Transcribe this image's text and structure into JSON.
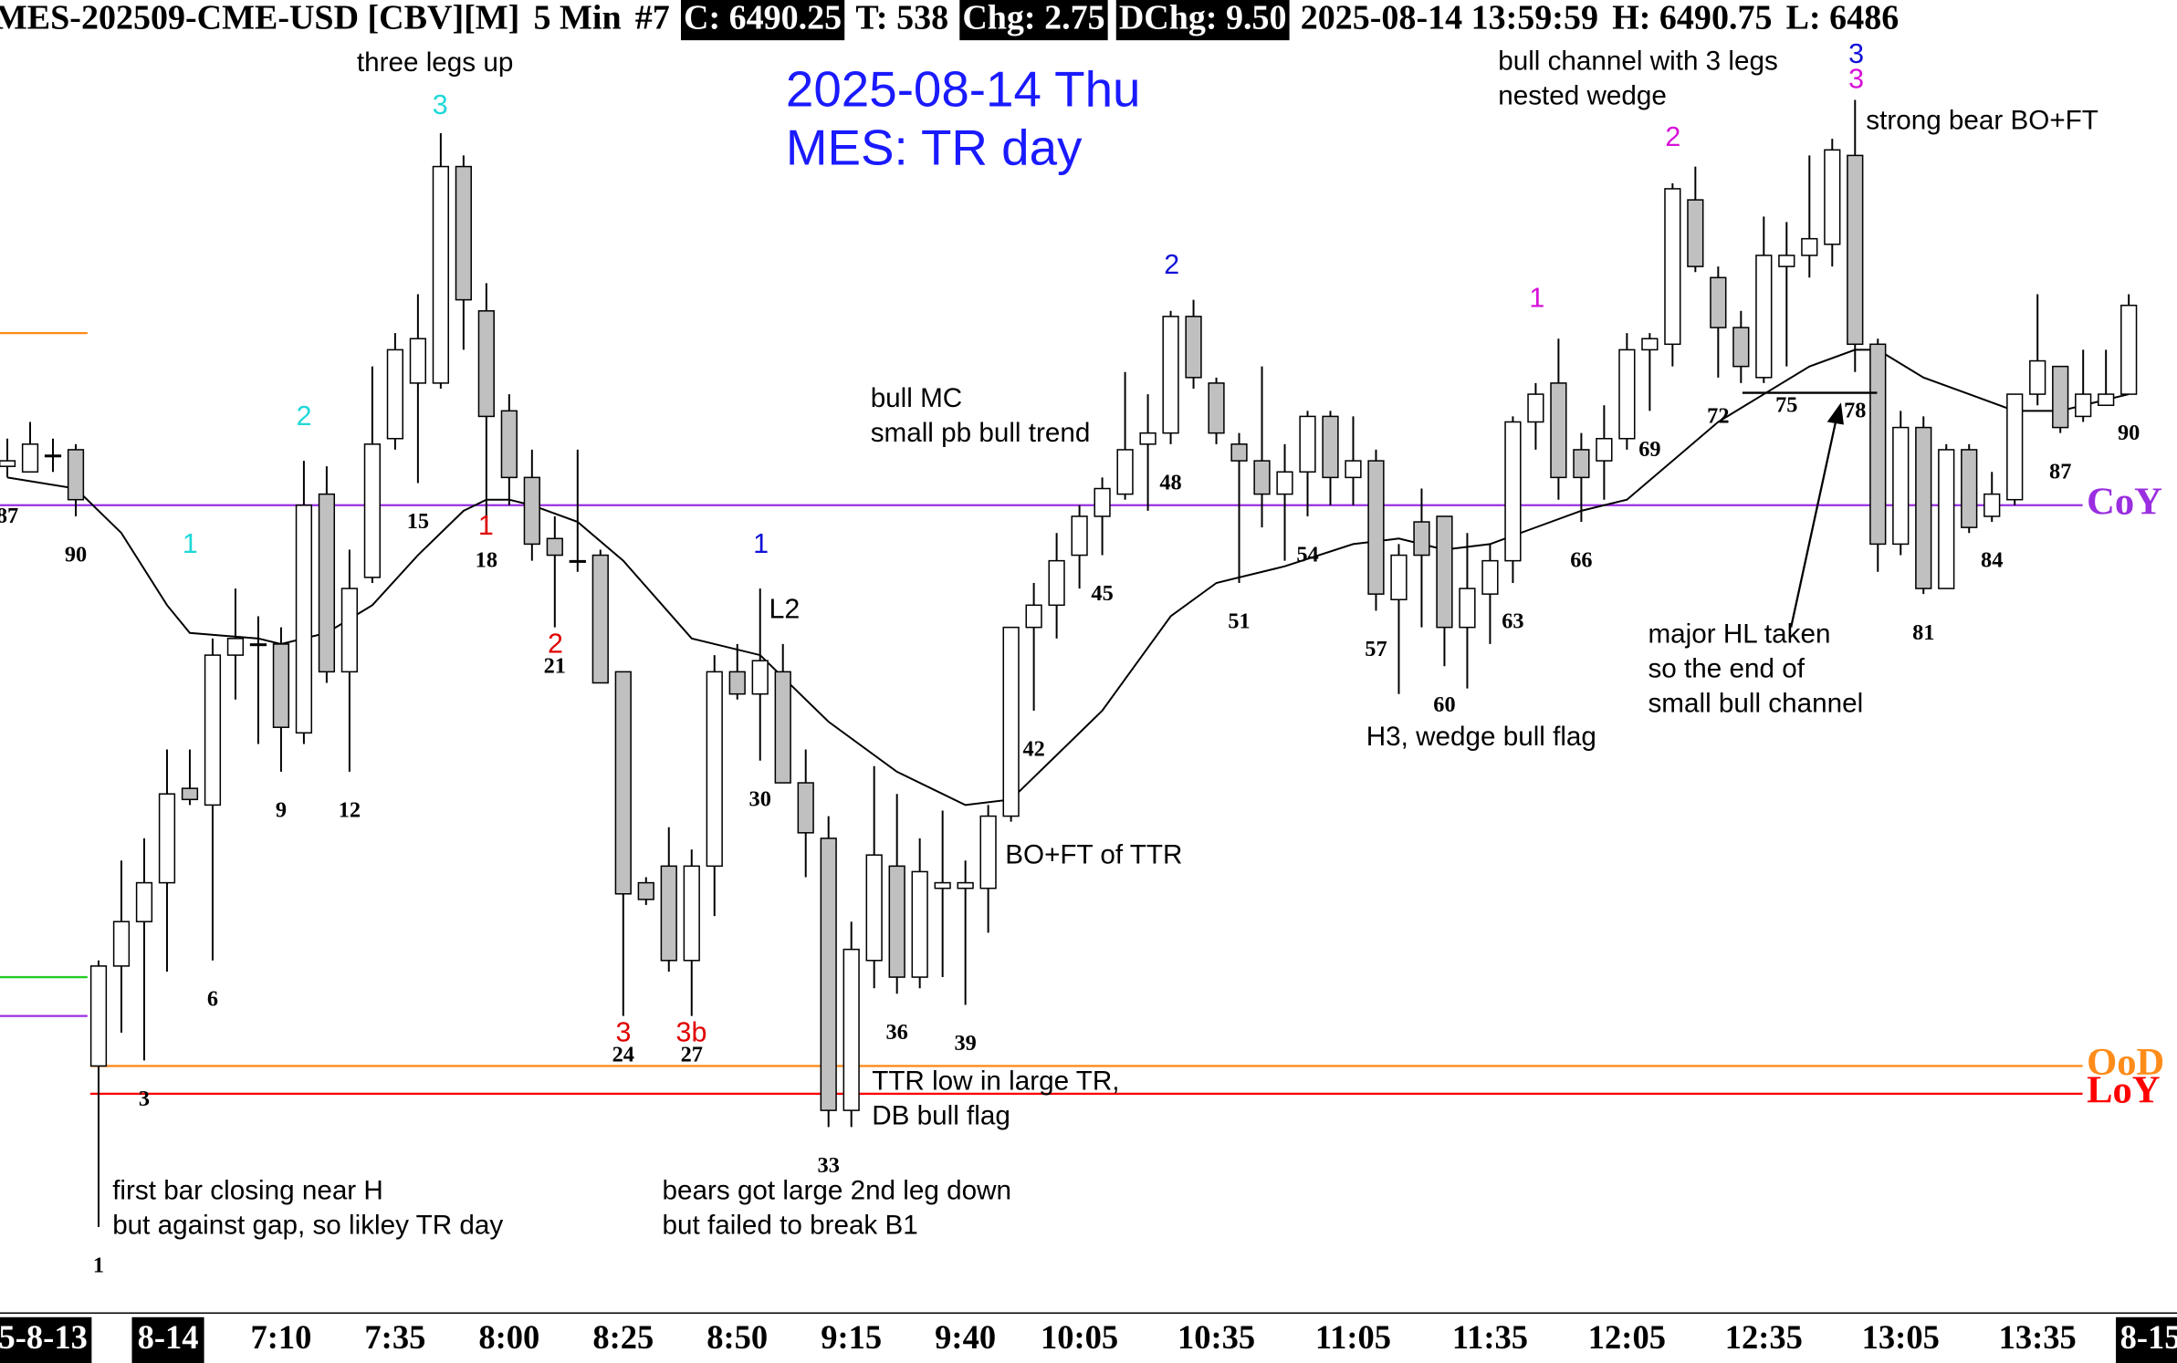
{
  "header": [
    {
      "text": "MES-202509-CME-USD [CBV][M]",
      "inverted": false
    },
    {
      "text": "5 Min",
      "inverted": false
    },
    {
      "text": "#7",
      "inverted": false
    },
    {
      "text": "C: 6490.25",
      "inverted": true
    },
    {
      "text": "T: 538",
      "inverted": false
    },
    {
      "text": "Chg: 2.75",
      "inverted": true
    },
    {
      "text": "DChg: 9.50",
      "inverted": true
    },
    {
      "text": "2025-08-14 13:59:59",
      "inverted": false
    },
    {
      "text": "H: 6490.75",
      "inverted": false
    },
    {
      "text": "L: 6486",
      "inverted": false
    }
  ],
  "chart_data": {
    "type": "candlestick",
    "title": "2025-08-14 Thu",
    "subtitle": "MES: TR day",
    "up_color": "#ffffff",
    "down_color": "#c0c0c0",
    "ylim": [
      6445,
      6504
    ],
    "categories": [
      "87",
      null,
      null,
      "90",
      "1",
      null,
      "3",
      null,
      null,
      "6",
      null,
      null,
      "9",
      null,
      null,
      "12",
      null,
      null,
      "15",
      null,
      null,
      "18",
      null,
      null,
      "21",
      null,
      null,
      "24",
      null,
      null,
      "27",
      null,
      null,
      "30",
      null,
      null,
      "33",
      null,
      null,
      "36",
      null,
      null,
      "39",
      null,
      null,
      "42",
      null,
      null,
      "45",
      null,
      null,
      "48",
      null,
      null,
      "51",
      null,
      null,
      "54",
      null,
      null,
      "57",
      null,
      null,
      "60",
      null,
      null,
      "63",
      null,
      null,
      "66",
      null,
      null,
      "69",
      null,
      null,
      "72",
      null,
      null,
      "75",
      null,
      null,
      "78",
      null,
      null,
      "81",
      null,
      null,
      "84",
      null,
      null,
      "87",
      null,
      null,
      "90"
    ],
    "times": [
      null,
      null,
      null,
      null,
      null,
      null,
      null,
      null,
      null,
      null,
      null,
      null,
      "7:10",
      null,
      null,
      null,
      null,
      "7:35",
      null,
      null,
      null,
      null,
      "8:00",
      null,
      null,
      null,
      null,
      "8:25",
      null,
      null,
      null,
      null,
      "8:50",
      null,
      null,
      null,
      null,
      "9:15",
      null,
      null,
      null,
      null,
      "9:40",
      null,
      null,
      null,
      null,
      "10:05",
      null,
      null,
      null,
      null,
      null,
      "10:35",
      null,
      null,
      null,
      null,
      null,
      "11:05",
      null,
      null,
      null,
      null,
      null,
      "11:35",
      null,
      null,
      null,
      null,
      null,
      "12:05",
      null,
      null,
      null,
      null,
      null,
      "12:35",
      null,
      null,
      null,
      null,
      null,
      "13:05",
      null,
      null,
      null,
      null,
      null,
      "13:35",
      null,
      null,
      null,
      null
    ],
    "open": [
      6483,
      6482.75,
      6483.5,
      6483.75,
      6456,
      6460.5,
      6462.5,
      6464.25,
      6468.5,
      6467.75,
      6474.5,
      6475,
      6475,
      6471,
      6481.75,
      6473.75,
      6478,
      6484.25,
      6486.75,
      6486.75,
      6496.5,
      6490,
      6485.5,
      6482.5,
      6479.75,
      6478.75,
      6479,
      6473.75,
      6464.25,
      6465,
      6460.75,
      6465,
      6473.75,
      6472.75,
      6473.75,
      6468.75,
      6466.25,
      6454,
      6460.75,
      6465,
      6460,
      6464,
      6464,
      6464,
      6467.25,
      6475.75,
      6476.75,
      6479,
      6480.75,
      6481.75,
      6484,
      6484.5,
      6489.75,
      6486.75,
      6484,
      6483.25,
      6481.75,
      6482.75,
      6485.25,
      6482.5,
      6483.25,
      6477,
      6480.5,
      6480.75,
      6475.75,
      6477.25,
      6478.75,
      6485,
      6486.75,
      6483.75,
      6483.25,
      6484.25,
      6488.25,
      6488.5,
      6495,
      6491.5,
      6489.25,
      6487,
      6492,
      6492.5,
      6493,
      6497,
      6488.5,
      6479.5,
      6484.75,
      6477.5,
      6483.75,
      6480.75,
      6481.5,
      6486.25,
      6487.5,
      6485.25,
      6485.75,
      6486.25
    ],
    "high": [
      6484.25,
      6485,
      6484.25,
      6484,
      6460.75,
      6465.25,
      6466.25,
      6470.25,
      6470.25,
      6475.25,
      6477.5,
      6476.25,
      6475.75,
      6483.25,
      6483,
      6479.25,
      6487.5,
      6489,
      6490.75,
      6498,
      6497,
      6491.25,
      6486.25,
      6483.75,
      6480.75,
      6483.75,
      6479.25,
      6473.75,
      6464.5,
      6466.75,
      6465.75,
      6474.5,
      6475,
      6477.5,
      6475,
      6470.25,
      6467.25,
      6462.5,
      6469.5,
      6468.25,
      6466.25,
      6467.5,
      6465.25,
      6467.75,
      6475.75,
      6477.75,
      6480,
      6481.25,
      6482.5,
      6487.25,
      6486.25,
      6490,
      6490.5,
      6487,
      6484.5,
      6487.5,
      6484,
      6485.5,
      6485.5,
      6485.25,
      6483.75,
      6479.5,
      6482,
      6480.75,
      6480,
      6479.5,
      6485.25,
      6486.75,
      6488.75,
      6484.5,
      6485.75,
      6489,
      6489,
      6495.75,
      6496.5,
      6492,
      6490,
      6494.25,
      6494,
      6497,
      6497.75,
      6499.5,
      6488.75,
      6485.5,
      6485.25,
      6484,
      6484,
      6482.75,
      6486.25,
      6490.75,
      6487.5,
      6488.25,
      6488.25,
      6490.75
    ],
    "low": [
      6482.5,
      6482.75,
      6482.75,
      6480.75,
      6448.75,
      6457.5,
      6456.25,
      6460.25,
      6467.75,
      6460.75,
      6472.5,
      6470.5,
      6469.25,
      6470.5,
      6473.25,
      6469.25,
      6477.75,
      6483.75,
      6482.25,
      6486.5,
      6488.25,
      6480.5,
      6481.25,
      6478.75,
      6475.75,
      6478.25,
      6473.25,
      6458.25,
      6463.25,
      6460.25,
      6458.25,
      6462.75,
      6472.5,
      6469.75,
      6468.75,
      6464.5,
      6453.25,
      6453.25,
      6459.5,
      6459.25,
      6459.5,
      6460,
      6458.75,
      6462,
      6467,
      6472,
      6475.25,
      6477.5,
      6479,
      6481.5,
      6481,
      6484,
      6486.5,
      6484,
      6477.75,
      6480.25,
      6478.75,
      6480.75,
      6481.25,
      6481.25,
      6476.5,
      6472.75,
      6475.75,
      6474,
      6473,
      6475,
      6477.75,
      6483.75,
      6481.5,
      6480.5,
      6481.5,
      6483.75,
      6485.5,
      6487.5,
      6491.75,
      6487,
      6486.75,
      6486.75,
      6487.5,
      6491.5,
      6492,
      6487.25,
      6478.25,
      6479,
      6477.25,
      6477.5,
      6480,
      6480.5,
      6481.25,
      6485.75,
      6484.5,
      6485,
      6485.75,
      6486.25
    ],
    "close": [
      6483.25,
      6484,
      6483.5,
      6481.5,
      6460.5,
      6462.5,
      6464.25,
      6468.25,
      6468,
      6474.5,
      6475.25,
      6475,
      6471.25,
      6481.25,
      6473.75,
      6477.5,
      6484,
      6488.25,
      6488.75,
      6496.5,
      6490.5,
      6485.25,
      6482.5,
      6479.5,
      6479,
      6478.75,
      6473.25,
      6463.75,
      6463.5,
      6460.75,
      6465,
      6473.75,
      6472.75,
      6474.25,
      6468.75,
      6466.5,
      6454,
      6461.25,
      6465.5,
      6460,
      6464.75,
      6464.25,
      6464.25,
      6467.25,
      6475.75,
      6476.75,
      6478.75,
      6480.75,
      6482,
      6483.75,
      6484.5,
      6489.75,
      6487,
      6484.5,
      6483.25,
      6481.75,
      6482.75,
      6485.25,
      6482.5,
      6483.25,
      6477.25,
      6479,
      6479,
      6475.75,
      6477.5,
      6478.75,
      6485,
      6486.25,
      6482.5,
      6482.5,
      6484.25,
      6488.25,
      6488.75,
      6495.5,
      6492,
      6489.25,
      6487.5,
      6492.5,
      6492.5,
      6493.25,
      6497.25,
      6488.5,
      6479.5,
      6484.75,
      6477.5,
      6483.75,
      6480.25,
      6481.75,
      6486.25,
      6487.75,
      6484.75,
      6486.25,
      6486.25,
      6490.25
    ],
    "ema": {
      "color": "#000000",
      "x": [
        0,
        3,
        5,
        7,
        8,
        11,
        12,
        14,
        16,
        18,
        20,
        21,
        22,
        23,
        25,
        27,
        30,
        33,
        36,
        39,
        42,
        44,
        46,
        48,
        51,
        53,
        56,
        59,
        61,
        63,
        65,
        67,
        69,
        71,
        73,
        75,
        77,
        79,
        81,
        82,
        84,
        86,
        88,
        90,
        93
      ],
      "values": [
        6482.5,
        6482,
        6480,
        6476.75,
        6475.5,
        6475.25,
        6475,
        6475.5,
        6476.75,
        6479,
        6481,
        6481.5,
        6481.5,
        6481.25,
        6480.5,
        6478.75,
        6475.25,
        6474.5,
        6471.5,
        6469.25,
        6467.75,
        6468,
        6470,
        6472,
        6476.25,
        6477.75,
        6478.5,
        6479.5,
        6479.75,
        6479.25,
        6479.5,
        6480.25,
        6481,
        6481.5,
        6483.25,
        6485,
        6486.25,
        6487.5,
        6488.25,
        6488.25,
        6487,
        6486.25,
        6485.5,
        6485.5,
        6486.25
      ]
    },
    "levels": [
      {
        "label": "CoY",
        "value": 6481.25,
        "color": "#9a2ee0"
      },
      {
        "label": "OoD",
        "value": 6456,
        "color": "#ff8c1a"
      },
      {
        "label": "LoY",
        "value": 6454.75,
        "color": "#ff0000"
      },
      {
        "value": 6489,
        "color": "#ff8c1a"
      },
      {
        "value": 6460,
        "color": "#22cc22"
      },
      {
        "value": 6458.25,
        "color": "#9a2ee0"
      }
    ],
    "leg_labels": [
      {
        "text": "3",
        "color": "#1ed8d8"
      },
      {
        "text": "2",
        "color": "#1ed8d8"
      },
      {
        "text": "1",
        "color": "#1ed8d8"
      },
      {
        "text": "1",
        "color": "#e00000"
      },
      {
        "text": "2",
        "color": "#e00000"
      },
      {
        "text": "3",
        "color": "#e00000"
      },
      {
        "text": "3b",
        "color": "#e00000"
      },
      {
        "text": "1",
        "color": "#1010d8"
      },
      {
        "text": "L2",
        "color": "#000000"
      },
      {
        "text": "2",
        "color": "#1010d8"
      },
      {
        "text": "1",
        "color": "#d810d8"
      },
      {
        "text": "2",
        "color": "#d810d8"
      },
      {
        "text": "3",
        "color": "#1010d8"
      },
      {
        "text": "3",
        "color": "#d810d8"
      }
    ],
    "annotations": [
      [
        "three legs up"
      ],
      [
        "bull channel with 3 legs",
        "nested wedge"
      ],
      [
        "strong bear BO+FT"
      ],
      [
        "bull MC",
        "small pb bull trend"
      ],
      [
        "BO+FT of TTR"
      ],
      [
        "H3, wedge bull flag"
      ],
      [
        "major HL taken",
        "so the end of",
        "small bull channel"
      ],
      [
        "TTR low in large TR,",
        "DB bull flag"
      ],
      [
        "first bar closing near H",
        "but against gap, so likley TR day"
      ],
      [
        "bears got large 2nd leg down",
        "but failed to break B1"
      ]
    ],
    "date_labels": [
      "5-8-13",
      "8-14",
      "8-15"
    ]
  }
}
